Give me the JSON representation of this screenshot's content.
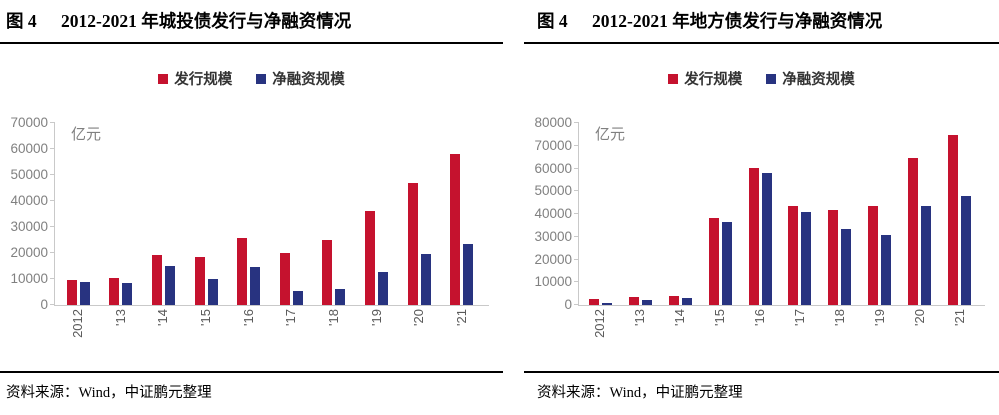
{
  "colors": {
    "issuance_red": "#C5122E",
    "net_financing_blue": "#283380",
    "axis_text_gray": "#808080",
    "axis_line_gray": "#C9C9C9",
    "title_black": "#000000"
  },
  "panels": [
    {
      "figure_label": "图 4",
      "title": "2012-2021 年城投债发行与净融资情况",
      "source": "资料来源：Wind，中证鹏元整理"
    },
    {
      "figure_label": "图 4",
      "title": "2012-2021 年地方债发行与净融资情况",
      "source": "资料来源：Wind，中证鹏元整理"
    }
  ],
  "chart_data": [
    {
      "type": "bar",
      "title": "图 4 2012-2021 年城投债发行与净融资情况",
      "categories": [
        "2012",
        "'13",
        "'14",
        "'15",
        "'16",
        "'17",
        "'18",
        "'19",
        "'20",
        "'21"
      ],
      "series": [
        {
          "name": "发行规模",
          "color": "#C5122E",
          "values": [
            9500,
            10400,
            19300,
            18300,
            25900,
            20100,
            25100,
            36000,
            47000,
            58000
          ]
        },
        {
          "name": "净融资规模",
          "color": "#283380",
          "values": [
            8700,
            8400,
            15000,
            10100,
            14700,
            5300,
            6000,
            12800,
            19500,
            23500
          ]
        }
      ],
      "xlabel": "",
      "ylabel": "亿元",
      "ylim": [
        0,
        70000
      ],
      "ytick_step": 10000,
      "grid": false,
      "legend_position": "top"
    },
    {
      "type": "bar",
      "title": "图 4 2012-2021 年地方债发行与净融资情况",
      "categories": [
        "2012",
        "'13",
        "'14",
        "'15",
        "'16",
        "'17",
        "'18",
        "'19",
        "'20",
        "'21"
      ],
      "series": [
        {
          "name": "发行规模",
          "color": "#C5122E",
          "values": [
            2600,
            3500,
            3900,
            38400,
            60400,
            43600,
            41800,
            43600,
            64500,
            74900
          ]
        },
        {
          "name": "净融资规模",
          "color": "#283380",
          "values": [
            800,
            2200,
            3000,
            36400,
            58000,
            41000,
            33300,
            30600,
            43700,
            48100
          ]
        }
      ],
      "xlabel": "",
      "ylabel": "亿元",
      "ylim": [
        0,
        80000
      ],
      "ytick_step": 10000,
      "grid": false,
      "legend_position": "top"
    }
  ]
}
